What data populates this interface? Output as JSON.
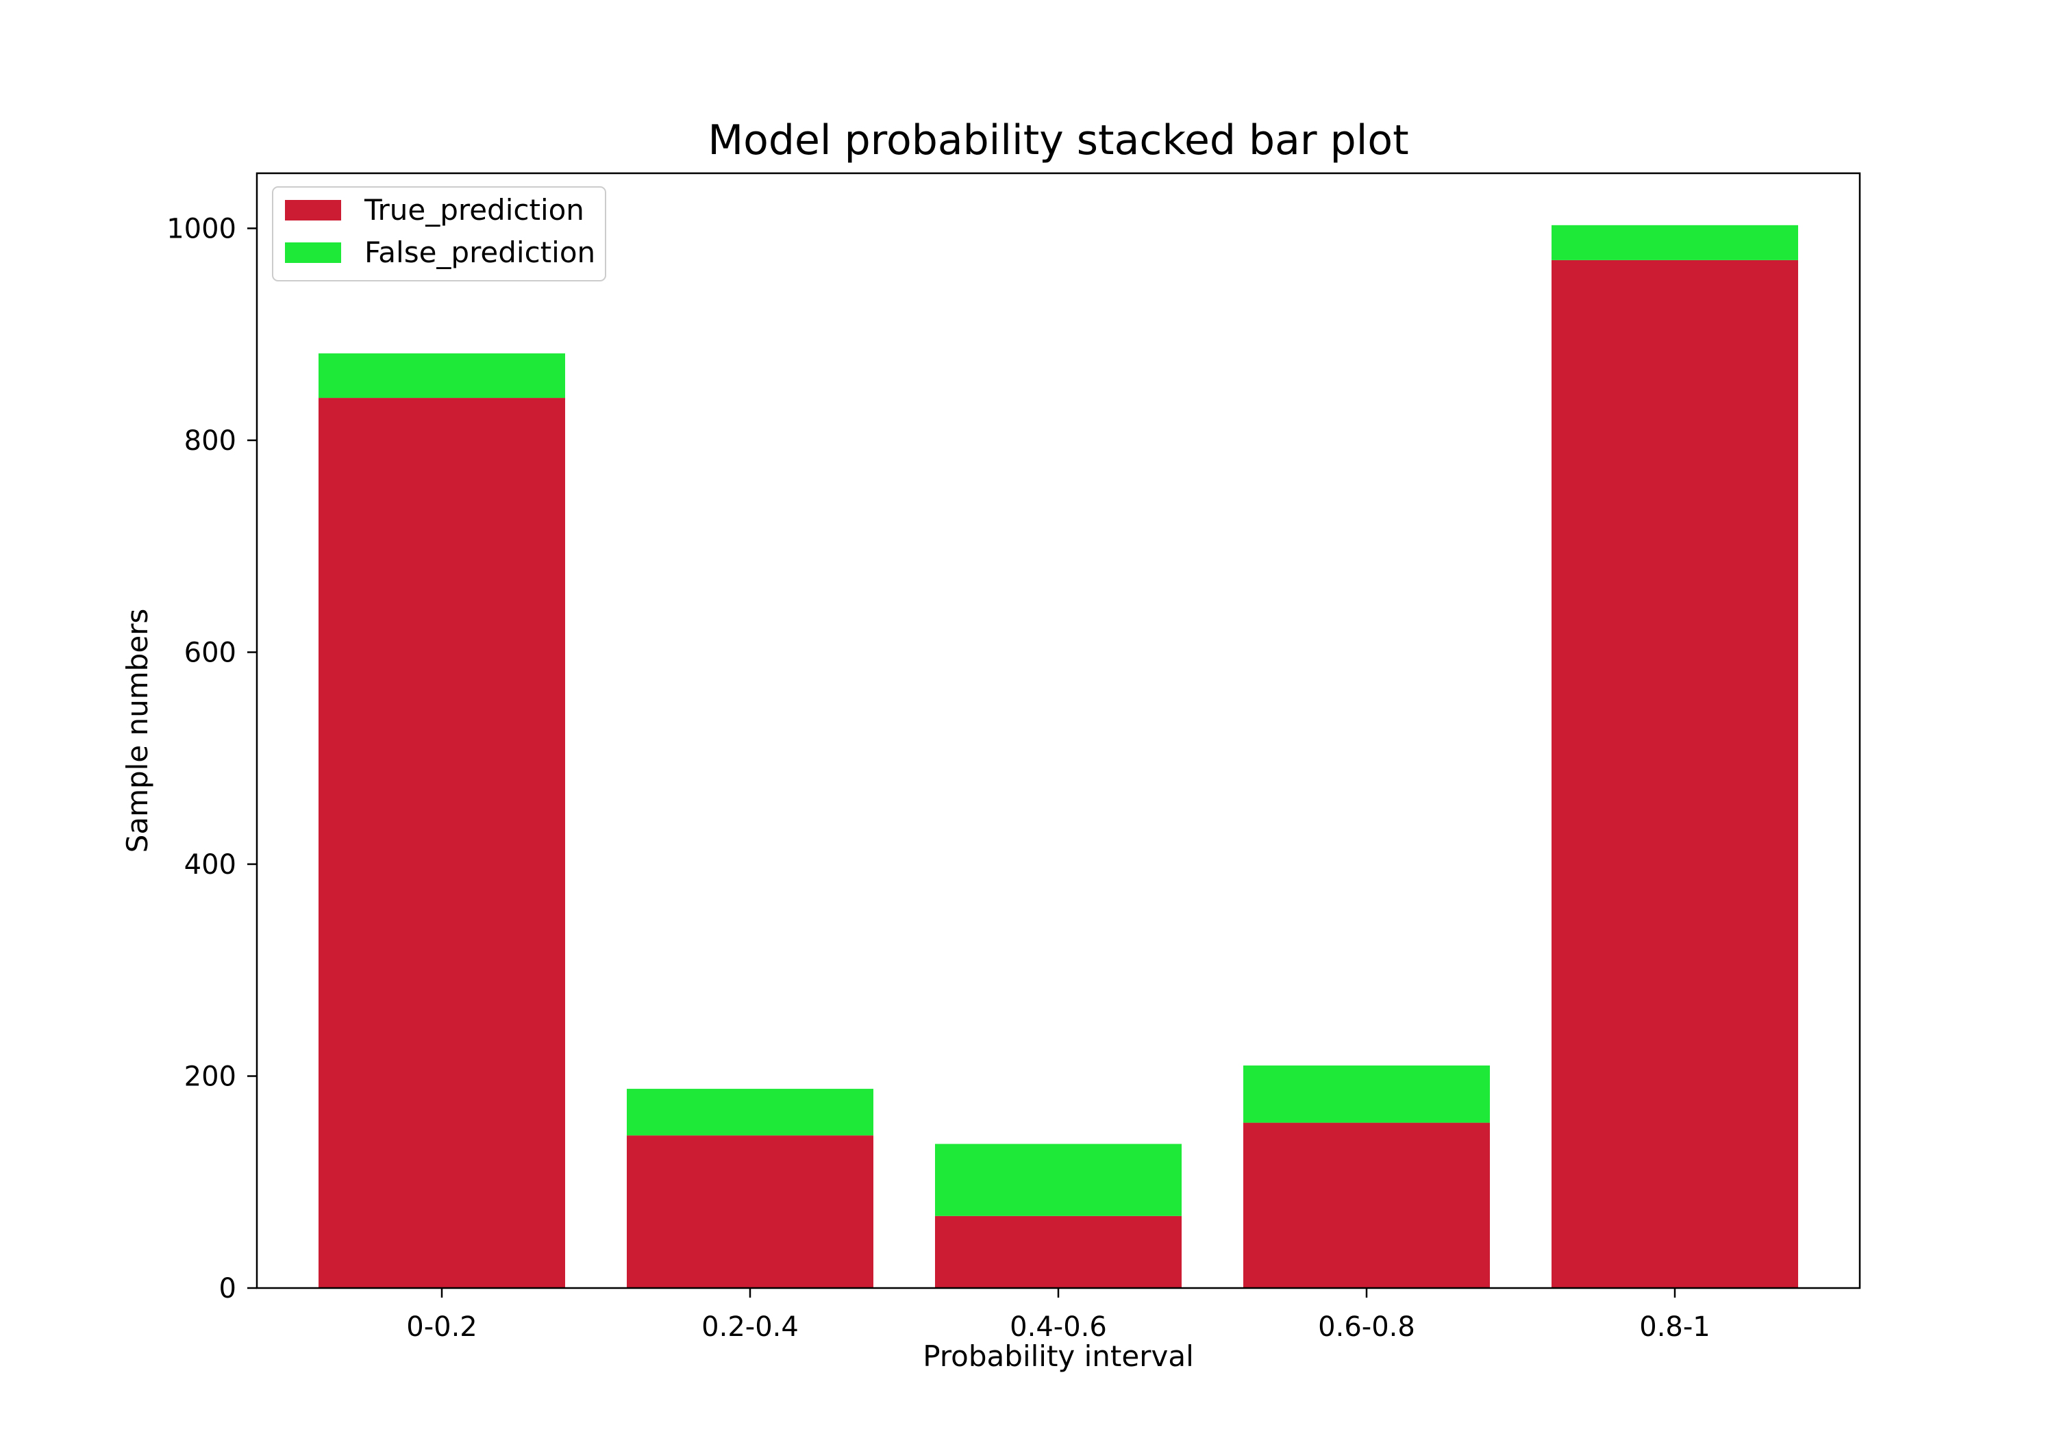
{
  "chart_data": {
    "type": "bar",
    "stacked": true,
    "title": "Model probability stacked bar plot",
    "xlabel": "Probability interval",
    "ylabel": "Sample numbers",
    "categories": [
      "0-0.2",
      "0.2-0.4",
      "0.4-0.6",
      "0.6-0.8",
      "0.8-1"
    ],
    "series": [
      {
        "name": "True_prediction",
        "color": "#cb1c33",
        "values": [
          840,
          144,
          68,
          156,
          970
        ]
      },
      {
        "name": "False_prediction",
        "color": "#1ee838",
        "values": [
          42,
          44,
          68,
          54,
          33
        ]
      }
    ],
    "ylim": [
      0,
      1052
    ],
    "yticks": [
      0,
      200,
      400,
      600,
      800,
      1000
    ],
    "grid": false,
    "legend_position": "upper left"
  }
}
